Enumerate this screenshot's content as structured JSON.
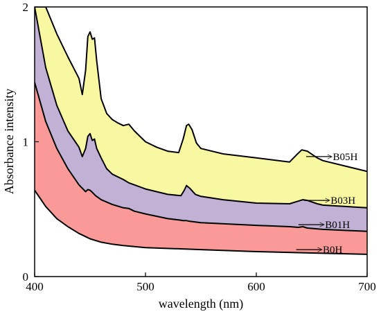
{
  "chart_data": {
    "type": "area",
    "xlabel": "wavelength (nm)",
    "ylabel": "Absorbance intensity",
    "xlim": [
      400,
      700
    ],
    "ylim": [
      0,
      2
    ],
    "x_ticks": [
      400,
      500,
      600,
      700
    ],
    "y_ticks": [
      0,
      1,
      2
    ],
    "fill_colors": [
      "#f99a99",
      "#c0b1d5",
      "#f8f8a2"
    ],
    "line_color": "#000000",
    "series": [
      {
        "name": ">B0H",
        "points": [
          [
            400,
            0.64
          ],
          [
            410,
            0.52
          ],
          [
            420,
            0.43
          ],
          [
            430,
            0.37
          ],
          [
            440,
            0.32
          ],
          [
            450,
            0.28
          ],
          [
            460,
            0.255
          ],
          [
            470,
            0.24
          ],
          [
            480,
            0.23
          ],
          [
            500,
            0.215
          ],
          [
            550,
            0.2
          ],
          [
            600,
            0.185
          ],
          [
            650,
            0.175
          ],
          [
            700,
            0.165
          ]
        ]
      },
      {
        "name": ">B01H",
        "points": [
          [
            400,
            1.44
          ],
          [
            410,
            1.15
          ],
          [
            420,
            0.95
          ],
          [
            430,
            0.8
          ],
          [
            440,
            0.68
          ],
          [
            446,
            0.63
          ],
          [
            448,
            0.645
          ],
          [
            450,
            0.64
          ],
          [
            452,
            0.625
          ],
          [
            455,
            0.6
          ],
          [
            460,
            0.57
          ],
          [
            470,
            0.535
          ],
          [
            480,
            0.51
          ],
          [
            485,
            0.505
          ],
          [
            490,
            0.485
          ],
          [
            500,
            0.465
          ],
          [
            520,
            0.43
          ],
          [
            530,
            0.42
          ],
          [
            534,
            0.415
          ],
          [
            537,
            0.415
          ],
          [
            540,
            0.41
          ],
          [
            550,
            0.4
          ],
          [
            600,
            0.38
          ],
          [
            630,
            0.37
          ],
          [
            638,
            0.365
          ],
          [
            642,
            0.37
          ],
          [
            646,
            0.36
          ],
          [
            660,
            0.35
          ],
          [
            700,
            0.335
          ]
        ]
      },
      {
        "name": ">B03H",
        "points": [
          [
            400,
            2.0
          ],
          [
            410,
            1.55
          ],
          [
            420,
            1.27
          ],
          [
            430,
            1.08
          ],
          [
            440,
            0.96
          ],
          [
            443,
            0.89
          ],
          [
            446,
            0.95
          ],
          [
            448,
            1.04
          ],
          [
            450,
            1.06
          ],
          [
            452,
            1.01
          ],
          [
            454,
            1.02
          ],
          [
            456,
            0.95
          ],
          [
            460,
            0.88
          ],
          [
            465,
            0.8
          ],
          [
            470,
            0.76
          ],
          [
            480,
            0.72
          ],
          [
            485,
            0.695
          ],
          [
            490,
            0.68
          ],
          [
            500,
            0.65
          ],
          [
            520,
            0.61
          ],
          [
            532,
            0.6
          ],
          [
            535,
            0.64
          ],
          [
            537,
            0.675
          ],
          [
            540,
            0.655
          ],
          [
            545,
            0.61
          ],
          [
            550,
            0.595
          ],
          [
            570,
            0.57
          ],
          [
            600,
            0.545
          ],
          [
            630,
            0.54
          ],
          [
            638,
            0.56
          ],
          [
            642,
            0.57
          ],
          [
            646,
            0.565
          ],
          [
            655,
            0.54
          ],
          [
            660,
            0.53
          ],
          [
            700,
            0.51
          ]
        ]
      },
      {
        "name": ">B05H",
        "points": [
          [
            400,
            2.0
          ],
          [
            410,
            2.0
          ],
          [
            420,
            1.8
          ],
          [
            430,
            1.63
          ],
          [
            440,
            1.47
          ],
          [
            443,
            1.35
          ],
          [
            446,
            1.53
          ],
          [
            448,
            1.78
          ],
          [
            450,
            1.815
          ],
          [
            452,
            1.76
          ],
          [
            454,
            1.77
          ],
          [
            456,
            1.6
          ],
          [
            460,
            1.32
          ],
          [
            465,
            1.21
          ],
          [
            470,
            1.165
          ],
          [
            475,
            1.14
          ],
          [
            480,
            1.12
          ],
          [
            485,
            1.13
          ],
          [
            490,
            1.08
          ],
          [
            500,
            1.0
          ],
          [
            510,
            0.96
          ],
          [
            520,
            0.93
          ],
          [
            530,
            0.92
          ],
          [
            534,
            1.02
          ],
          [
            537,
            1.12
          ],
          [
            539,
            1.13
          ],
          [
            542,
            1.09
          ],
          [
            546,
            0.99
          ],
          [
            550,
            0.95
          ],
          [
            570,
            0.91
          ],
          [
            600,
            0.88
          ],
          [
            630,
            0.85
          ],
          [
            636,
            0.9
          ],
          [
            641,
            0.94
          ],
          [
            646,
            0.93
          ],
          [
            655,
            0.88
          ],
          [
            660,
            0.86
          ],
          [
            700,
            0.78
          ]
        ]
      }
    ],
    "annotations": [
      {
        "label": ">B05H",
        "x": 645,
        "y": 0.89
      },
      {
        "label": ">B03H",
        "x": 643,
        "y": 0.565
      },
      {
        "label": ">B01H",
        "x": 638,
        "y": 0.385
      },
      {
        "label": ">B0H",
        "x": 636,
        "y": 0.2
      }
    ]
  }
}
